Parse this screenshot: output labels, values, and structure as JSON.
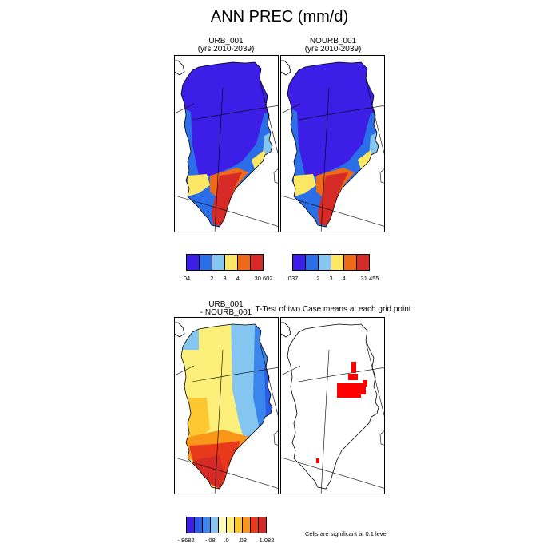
{
  "title": "ANN PREC (mm/d)",
  "colors": {
    "abs": [
      "#3d1ee6",
      "#2a6ee8",
      "#85c6f0",
      "#fde865",
      "#ef6a18",
      "#d52a25"
    ],
    "diff": [
      "#3d1ee6",
      "#2a5ae8",
      "#3a86ec",
      "#85c6f0",
      "#fefcba",
      "#fdf07a",
      "#fdc72f",
      "#f9961a",
      "#e83a1a",
      "#d52a25"
    ],
    "sig": "#ff0000",
    "land_outline": "#000000"
  },
  "panels": {
    "urb": {
      "title_line1": "URB_001",
      "title_line2": "(yrs 2010-2039)",
      "colorbar_labels": [
        ".04",
        "2",
        "3",
        "4",
        "30.602"
      ]
    },
    "nourb": {
      "title_line1": "NOURB_001",
      "title_line2": "(yrs 2010-2039)",
      "colorbar_labels": [
        ".037",
        "2",
        "3",
        "4",
        "31.455"
      ]
    },
    "diff": {
      "title_line1": "URB_001",
      "title_line2": "- NOURB_001",
      "colorbar_labels": [
        "-.8682",
        "-.08",
        ".0",
        ".08",
        "1.082"
      ]
    },
    "ttest": {
      "title": "T-Test of two Case means at each grid point",
      "note": "Cells are significant at 0.1 level"
    }
  }
}
